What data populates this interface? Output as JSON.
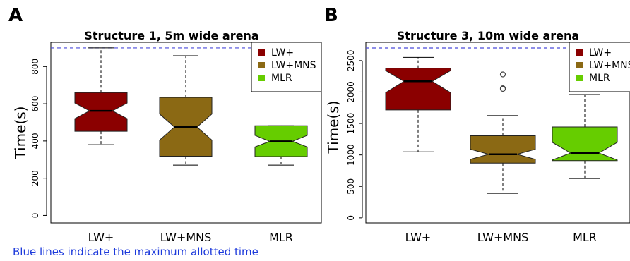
{
  "caption": "Blue lines indicate the maximum allotted time",
  "colors": {
    "max_line": "#4b4bdb",
    "caption": "#1d3adb"
  },
  "chart_data": [
    {
      "panel": "A",
      "type": "box",
      "title": "Structure 1, 5m wide arena",
      "xlabel": "",
      "ylabel": "Time(s)",
      "ylim": [
        -40,
        930
      ],
      "yticks": [
        0,
        200,
        400,
        600,
        800
      ],
      "max_allotted_time": 900,
      "legend": {
        "placement": "top-right"
      },
      "categories": [
        "LW+",
        "LW+MNS",
        "MLR"
      ],
      "series": [
        {
          "name": "LW+",
          "color": "#8b0000",
          "whisker_low": 380,
          "q1": 452,
          "median": 562,
          "q3": 660,
          "whisker_high": 900,
          "notch_low": 520,
          "notch_high": 604,
          "outliers": []
        },
        {
          "name": "LW+MNS",
          "color": "#8b6914",
          "whisker_low": 270,
          "q1": 318,
          "median": 475,
          "q3": 634,
          "whisker_high": 858,
          "notch_low": 405,
          "notch_high": 545,
          "outliers": []
        },
        {
          "name": "MLR",
          "color": "#66cd00",
          "whisker_low": 270,
          "q1": 316,
          "median": 398,
          "q3": 482,
          "whisker_high": 482,
          "notch_low": 368,
          "notch_high": 430,
          "outliers": []
        }
      ]
    },
    {
      "panel": "B",
      "type": "box",
      "title": "Structure 3, 10m wide arena",
      "xlabel": "",
      "ylabel": "Time(s)",
      "ylim": [
        -80,
        2790
      ],
      "yticks": [
        0,
        500,
        1000,
        1500,
        2000,
        2500
      ],
      "max_allotted_time": 2700,
      "legend": {
        "placement": "top-right"
      },
      "categories": [
        "LW+",
        "LW+MNS",
        "MLR"
      ],
      "series": [
        {
          "name": "LW+",
          "color": "#8b0000",
          "whisker_low": 1050,
          "q1": 1715,
          "median": 2170,
          "q3": 2380,
          "whisker_high": 2550,
          "notch_low": 1990,
          "notch_high": 2340,
          "outliers": []
        },
        {
          "name": "LW+MNS",
          "color": "#8b6914",
          "whisker_low": 390,
          "q1": 870,
          "median": 1010,
          "q3": 1305,
          "whisker_high": 1625,
          "notch_low": 930,
          "notch_high": 1090,
          "outliers": [
            2280,
            2060,
            2050
          ]
        },
        {
          "name": "MLR",
          "color": "#66cd00",
          "whisker_low": 625,
          "q1": 910,
          "median": 1030,
          "q3": 1445,
          "whisker_high": 1960,
          "notch_low": 920,
          "notch_high": 1200,
          "outliers": []
        }
      ]
    }
  ]
}
